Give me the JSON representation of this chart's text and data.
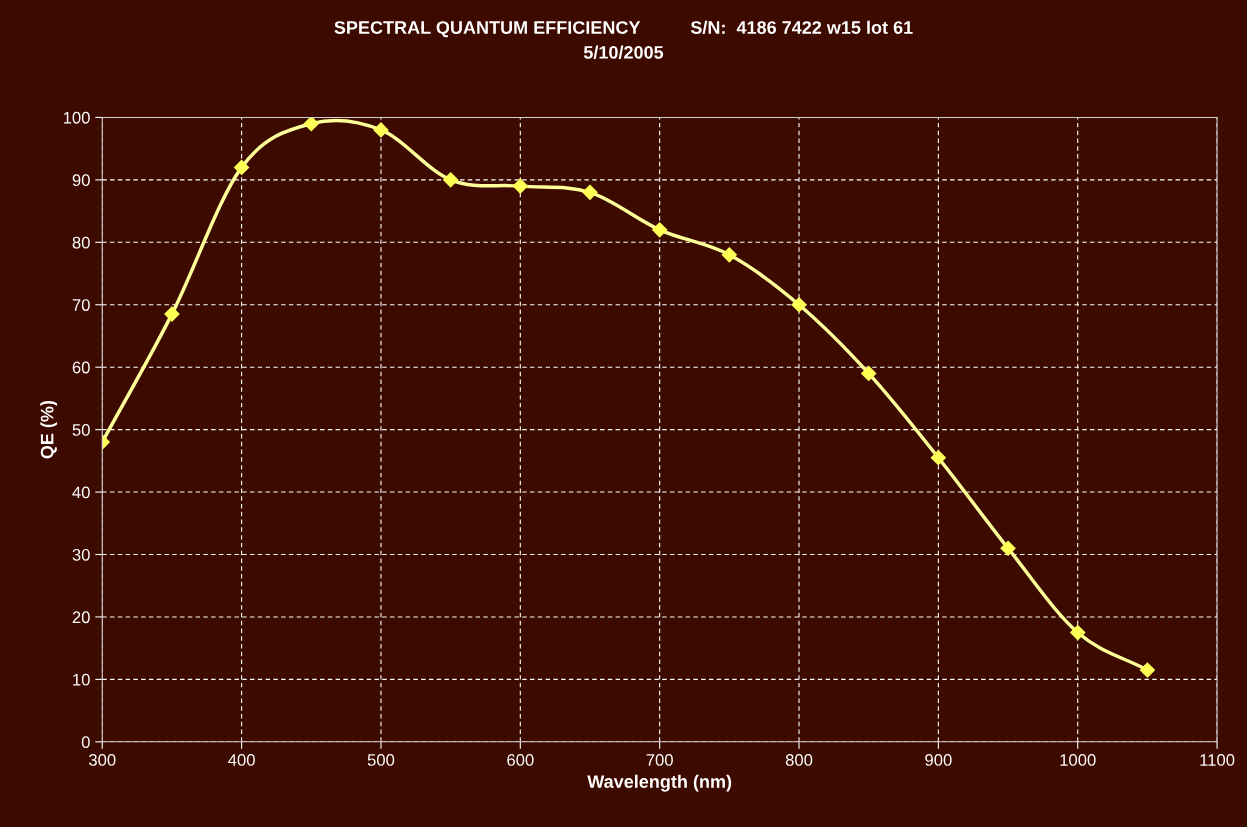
{
  "chart_data": {
    "type": "line",
    "title": "SPECTRAL QUANTUM EFFICIENCY          S/N:  4186 7422 w15 lot 61",
    "subtitle": "5/10/2005",
    "xlabel": "Wavelength (nm)",
    "ylabel": "QE (%)",
    "x": [
      300,
      350,
      400,
      450,
      500,
      550,
      600,
      650,
      700,
      750,
      800,
      850,
      900,
      950,
      1000,
      1050
    ],
    "series": [
      {
        "color": "#ffff99",
        "values": [
          48,
          68.5,
          92,
          99,
          98,
          90,
          89,
          88,
          82,
          78,
          70,
          59,
          45.5,
          31,
          17.5,
          11.5
        ]
      }
    ],
    "xlim": [
      300,
      1100
    ],
    "xticks": [
      300,
      400,
      500,
      600,
      700,
      800,
      900,
      1000,
      1100
    ],
    "ylim": [
      0,
      100
    ],
    "yticks": [
      0,
      10,
      20,
      30,
      40,
      50,
      60,
      70,
      80,
      90,
      100
    ],
    "grid": true,
    "legend": false,
    "marker": "diamond",
    "line_style": "solid"
  }
}
